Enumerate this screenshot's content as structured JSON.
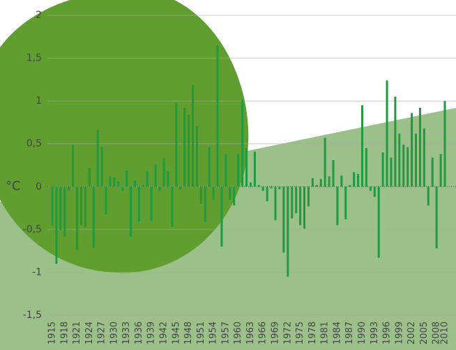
{
  "chart_data": {
    "type": "bar",
    "y_label": "°C",
    "color": "#1f9a3f",
    "categories": [
      "1915",
      null,
      null,
      "1918",
      null,
      null,
      "1921",
      null,
      null,
      "1924",
      null,
      null,
      "1927",
      null,
      null,
      "1930",
      null,
      null,
      "1933",
      null,
      null,
      "1936",
      null,
      null,
      "1939",
      null,
      null,
      "1942",
      null,
      null,
      "1945",
      null,
      null,
      "1948",
      null,
      null,
      "1951",
      null,
      null,
      "1954",
      null,
      null,
      "1957",
      null,
      null,
      "1960",
      null,
      null,
      "1963",
      null,
      null,
      "1966",
      null,
      null,
      "1969",
      null,
      null,
      "1972",
      null,
      null,
      "1975",
      null,
      null,
      "1978",
      null,
      null,
      "1981",
      null,
      null,
      "1984",
      null,
      null,
      "1987",
      null,
      null,
      "1990",
      null,
      null,
      "1993",
      null,
      null,
      "1996",
      null,
      null,
      "1999",
      null,
      null,
      "2002",
      null,
      null,
      "2005",
      null,
      null,
      "2008",
      null,
      "2010"
    ],
    "values": [
      -0.45,
      -0.9,
      -0.51,
      -0.58,
      -0.05,
      0.49,
      -0.74,
      -0.45,
      -0.47,
      0.22,
      -0.71,
      0.66,
      0.46,
      -0.32,
      0.12,
      0.11,
      0.06,
      -0.05,
      0.19,
      -0.58,
      0.07,
      -0.41,
      0.02,
      0.18,
      -0.4,
      0.26,
      -0.05,
      0.33,
      0.18,
      -0.47,
      0.98,
      -0.03,
      0.92,
      0.84,
      1.19,
      0.71,
      -0.2,
      -0.41,
      0.46,
      -0.15,
      1.65,
      -0.7,
      0.38,
      -0.15,
      -0.22,
      0.38,
      1.02,
      0.45,
      0.05,
      0.41,
      0.02,
      -0.05,
      -0.17,
      -0.02,
      -0.39,
      -0.03,
      -0.77,
      -1.05,
      -0.37,
      -0.31,
      -0.45,
      -0.49,
      -0.23,
      0.1,
      0.02,
      0.09,
      0.57,
      0.12,
      0.31,
      -0.45,
      0.13,
      -0.38,
      0.02,
      0.17,
      0.15,
      0.95,
      0.45,
      -0.05,
      -0.12,
      -0.83,
      0.4,
      1.24,
      0.34,
      1.05,
      0.62,
      0.49,
      0.46,
      0.86,
      0.62,
      0.92,
      0.68,
      -0.22,
      0.34,
      -0.72,
      0.38,
      1.0
    ],
    "ylim": [
      -1.5,
      2
    ],
    "yticks": [
      {
        "value": -1.5,
        "label": "-1,5"
      },
      -1,
      {
        "value": -0.5,
        "label": "-0,5"
      },
      0,
      {
        "value": 0.5,
        "label": "0,5"
      },
      1,
      {
        "value": 1.5,
        "label": "1,5"
      },
      2
    ],
    "grid": true
  }
}
